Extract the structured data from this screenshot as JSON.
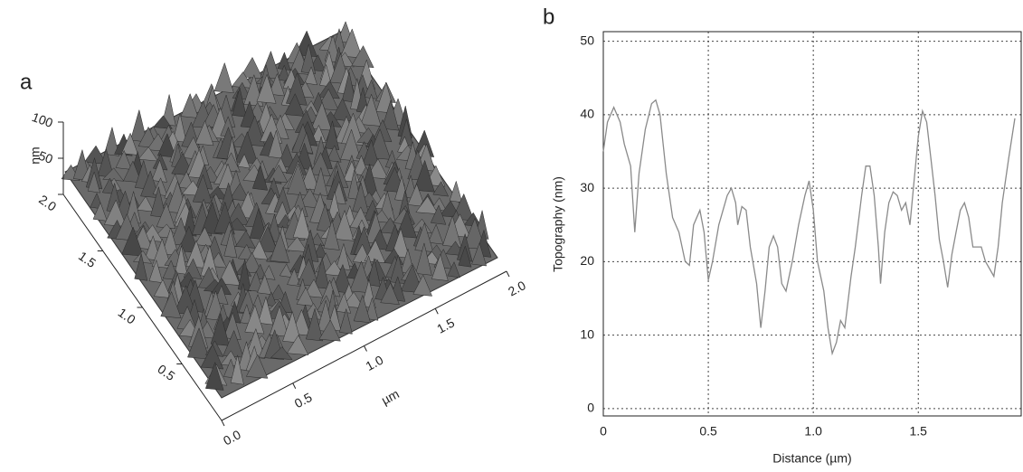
{
  "chart_data": [
    {
      "type": "surface",
      "panel_label": "a",
      "z_label": "nm",
      "z_ticks": [
        100,
        50
      ],
      "y_ticks": [
        {
          "value": 2,
          "label": "2.0"
        },
        1.5,
        {
          "value": 1,
          "label": "1.0"
        },
        0.5
      ],
      "x_ticks": [
        {
          "value": 0,
          "label": "0.0"
        },
        0.5,
        {
          "value": 1,
          "label": "1.0"
        },
        1.5,
        {
          "value": 2,
          "label": "2.0"
        }
      ],
      "x_label": "µm",
      "color": "#5a5a5a"
    },
    {
      "type": "line",
      "panel_label": "b",
      "x_label": "Distance (µm)",
      "y_label": "Topography (nm)",
      "color": "#8a8a8a",
      "grid": true,
      "xlim": [
        0,
        1.99
      ],
      "xticks": [
        0,
        0.5,
        {
          "value": 1,
          "label": "1.0"
        },
        1.5
      ],
      "ylim": [
        -1,
        51.3
      ],
      "yticks": [
        0,
        10,
        20,
        30,
        40,
        50
      ],
      "x": [
        0,
        0.02,
        0.05,
        0.08,
        0.1,
        0.13,
        0.15,
        0.17,
        0.2,
        0.23,
        0.25,
        0.27,
        0.3,
        0.33,
        0.36,
        0.39,
        0.41,
        0.43,
        0.46,
        0.48,
        0.5,
        0.52,
        0.55,
        0.59,
        0.61,
        0.63,
        0.64,
        0.66,
        0.68,
        0.7,
        0.73,
        0.75,
        0.77,
        0.79,
        0.81,
        0.83,
        0.85,
        0.87,
        0.9,
        0.93,
        0.96,
        0.98,
        1.0,
        1.02,
        1.05,
        1.07,
        1.09,
        1.11,
        1.13,
        1.15,
        1.18,
        1.2,
        1.23,
        1.25,
        1.27,
        1.29,
        1.31,
        1.32,
        1.34,
        1.36,
        1.38,
        1.4,
        1.42,
        1.44,
        1.46,
        1.48,
        1.5,
        1.52,
        1.54,
        1.56,
        1.58,
        1.6,
        1.62,
        1.64,
        1.66,
        1.68,
        1.7,
        1.72,
        1.74,
        1.76,
        1.78,
        1.8,
        1.82,
        1.84,
        1.86,
        1.88,
        1.9,
        1.93,
        1.96
      ],
      "values": [
        35,
        39,
        41,
        39,
        36,
        33,
        24,
        32,
        38,
        41.5,
        42,
        40,
        32,
        26,
        24,
        20,
        19.5,
        25,
        27,
        24,
        17.5,
        20,
        25,
        29,
        30,
        28,
        25,
        27.5,
        27,
        22,
        17,
        11,
        16,
        22,
        23.5,
        22,
        17,
        16,
        20,
        25,
        29,
        31,
        27,
        20,
        16,
        11,
        7.5,
        9,
        12,
        11,
        18,
        22,
        29,
        33,
        33,
        29,
        22,
        17,
        24,
        28,
        29.5,
        29,
        27,
        28,
        25,
        31,
        37,
        40.5,
        39,
        34,
        29,
        23,
        20,
        16.5,
        21,
        24,
        27,
        28,
        26,
        22,
        22,
        22,
        20,
        19,
        18,
        22,
        28,
        34,
        39.5
      ]
    }
  ]
}
